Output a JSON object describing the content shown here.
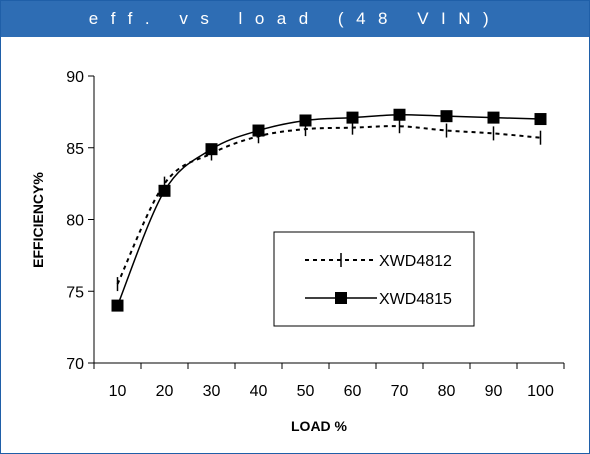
{
  "header": {
    "title": "eff. vs load (48 VIN)"
  },
  "chart_data": {
    "type": "line",
    "title": "eff. vs load (48 VIN)",
    "xlabel": "LOAD %",
    "ylabel": "EFFICIENCY%",
    "x": [
      10,
      20,
      30,
      40,
      50,
      60,
      70,
      80,
      90,
      100
    ],
    "ylim": [
      70,
      90
    ],
    "yticks": [
      70,
      75,
      80,
      85,
      90
    ],
    "grid": false,
    "legend_position": "center-right",
    "series": [
      {
        "name": "XWD4812",
        "style": "dashed",
        "marker": "bar",
        "color": "#000000",
        "values": [
          75.5,
          82.5,
          84.6,
          85.8,
          86.3,
          86.4,
          86.5,
          86.2,
          86.0,
          85.7
        ]
      },
      {
        "name": "XWD4815",
        "style": "solid",
        "marker": "square",
        "color": "#000000",
        "values": [
          74.0,
          82.0,
          84.9,
          86.2,
          86.9,
          87.1,
          87.3,
          87.2,
          87.1,
          87.0
        ]
      }
    ]
  },
  "colors": {
    "header_bg": "#2e6db4",
    "frame": "#1f5fa8"
  }
}
